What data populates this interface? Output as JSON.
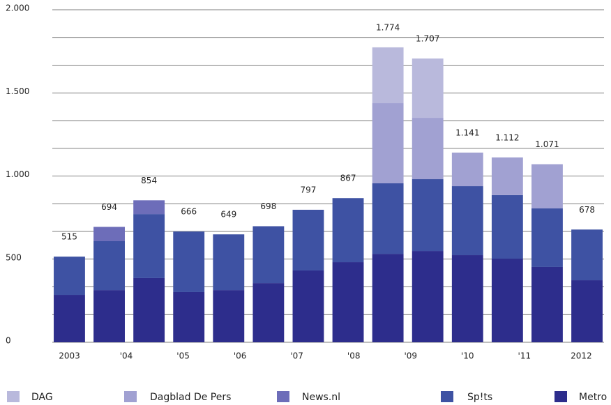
{
  "chart_data": {
    "type": "stacked_bar",
    "x": [
      2003,
      2003.7,
      2004.4,
      2005.1,
      2005.8,
      2006.5,
      2007.2,
      2007.9,
      2008.6,
      2009.3,
      2010,
      2010.7,
      2011.4,
      2012.1
    ],
    "xlim": [
      2002.7,
      2012.4
    ],
    "xticks": [
      2003,
      {
        "value": 2004,
        "label": "'04"
      },
      {
        "value": 2005,
        "label": "'05"
      },
      {
        "value": 2006,
        "label": "'06"
      },
      {
        "value": 2007,
        "label": "'07"
      },
      {
        "value": 2008,
        "label": "'08"
      },
      {
        "value": 2009,
        "label": "'09"
      },
      {
        "value": 2010,
        "label": "'10"
      },
      {
        "value": 2011,
        "label": "'11"
      },
      2012
    ],
    "ylim": [
      0,
      2000
    ],
    "yticks": [
      0,
      500,
      {
        "value": 1000,
        "label": "1.000"
      },
      {
        "value": 1500,
        "label": "1.500"
      },
      {
        "value": 2000,
        "label": "2.000"
      }
    ],
    "minor_yticks": [
      166.7,
      333.3,
      666.7,
      833.3,
      1166.7,
      1333.3,
      1666.7,
      1833.3
    ],
    "grid": true,
    "series": [
      {
        "name": "DAG",
        "color": "#b9b9dc",
        "values": [
          null,
          null,
          null,
          null,
          null,
          null,
          null,
          null,
          336,
          357,
          null,
          null,
          null,
          null
        ]
      },
      {
        "name": "Dagblad De Pers",
        "color": "#a1a1d2",
        "values": [
          null,
          null,
          null,
          null,
          null,
          null,
          null,
          null,
          482,
          369,
          202,
          227,
          266,
          null
        ]
      },
      {
        "name": "News.nl",
        "color": "#6d6db9",
        "values": [
          null,
          86,
          83,
          null,
          null,
          null,
          null,
          null,
          null,
          null,
          null,
          null,
          null,
          null
        ]
      },
      {
        "name": "Sp!ts",
        "color": "#3e52a3",
        "values": [
          230,
          294,
          385,
          364,
          335,
          342,
          365,
          385,
          424,
          432,
          415,
          382,
          352,
          305
        ]
      },
      {
        "name": "Metro",
        "color": "#2d2d8c",
        "values": [
          285,
          314,
          386,
          302,
          314,
          356,
          432,
          482,
          532,
          549,
          524,
          503,
          453,
          373
        ]
      }
    ],
    "totals": [
      515,
      694,
      854,
      666,
      649,
      698,
      797,
      867,
      1774,
      1707,
      1141,
      1112,
      1071,
      678
    ],
    "value_labels": [
      "515",
      "694",
      "854",
      "666",
      "649",
      "698",
      "797",
      "867",
      "1.774",
      "1.707",
      "1.141",
      "1.112",
      "1.071",
      "678"
    ]
  }
}
